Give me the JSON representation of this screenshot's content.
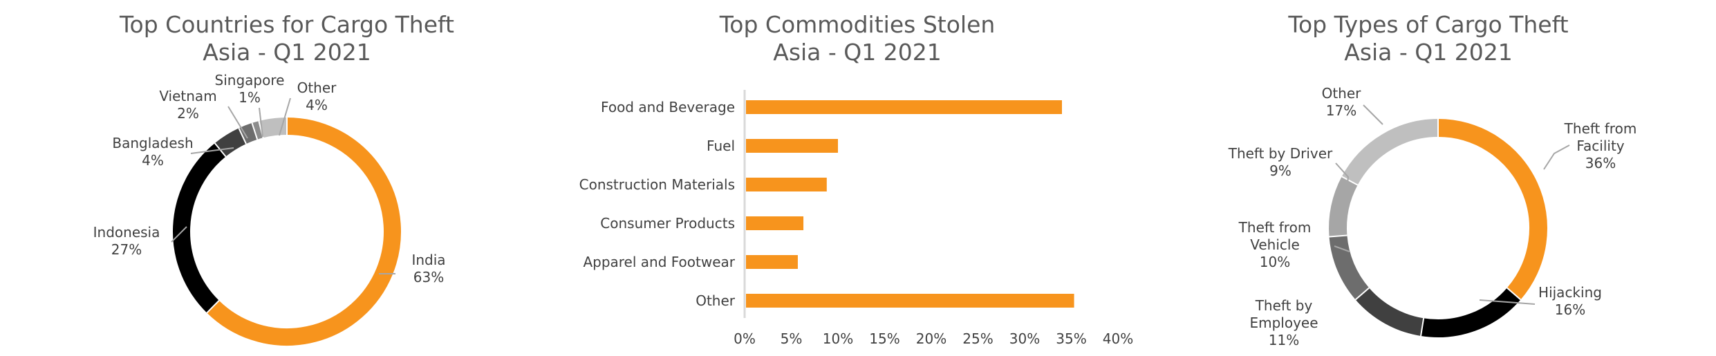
{
  "chart_data": [
    {
      "type": "pie",
      "title": "Top Countries for Cargo Theft",
      "subtitle": "Asia - Q1 2021",
      "slices": [
        {
          "label": "India",
          "value": 63,
          "display": "63%",
          "color": "#f7941d"
        },
        {
          "label": "Indonesia",
          "value": 27,
          "display": "27%",
          "color": "#000000"
        },
        {
          "label": "Bangladesh",
          "value": 4,
          "display": "4%",
          "color": "#404040"
        },
        {
          "label": "Vietnam",
          "value": 2,
          "display": "2%",
          "color": "#6d6d6d"
        },
        {
          "label": "Singapore",
          "value": 1,
          "display": "1%",
          "color": "#8c8c8c"
        },
        {
          "label": "Other",
          "value": 4,
          "display": "4%",
          "color": "#bfbfbf"
        }
      ]
    },
    {
      "type": "bar",
      "orientation": "horizontal",
      "title": "Top Commodities Stolen",
      "subtitle": "Asia - Q1 2021",
      "categories": [
        "Food and Beverage",
        "Fuel",
        "Construction Materials",
        "Consumer Products",
        "Apparel and Footwear",
        "Other"
      ],
      "values": [
        34,
        10,
        8.8,
        6.3,
        5.7,
        35.3
      ],
      "unit": "%",
      "xlim": [
        0,
        40
      ],
      "xticks": [
        "0%",
        "5%",
        "10%",
        "15%",
        "20%",
        "25%",
        "30%",
        "35%",
        "40%"
      ],
      "color": "#f7941d",
      "grid": false
    },
    {
      "type": "pie",
      "title": "Top Types of Cargo Theft",
      "subtitle": "Asia - Q1 2021",
      "slices": [
        {
          "label": "Theft from Facility",
          "value": 36,
          "display": "36%",
          "color": "#f7941d"
        },
        {
          "label": "Hijacking",
          "value": 16,
          "display": "16%",
          "color": "#000000"
        },
        {
          "label": "Theft by Employee",
          "value": 11,
          "display": "11%",
          "color": "#404040"
        },
        {
          "label": "Theft from Vehicle",
          "value": 10,
          "display": "10%",
          "color": "#6d6d6d"
        },
        {
          "label": "Theft by Driver",
          "value": 9,
          "display": "9%",
          "color": "#a6a6a6"
        },
        {
          "label": "Other",
          "value": 17,
          "display": "17%",
          "color": "#bfbfbf"
        }
      ]
    }
  ]
}
